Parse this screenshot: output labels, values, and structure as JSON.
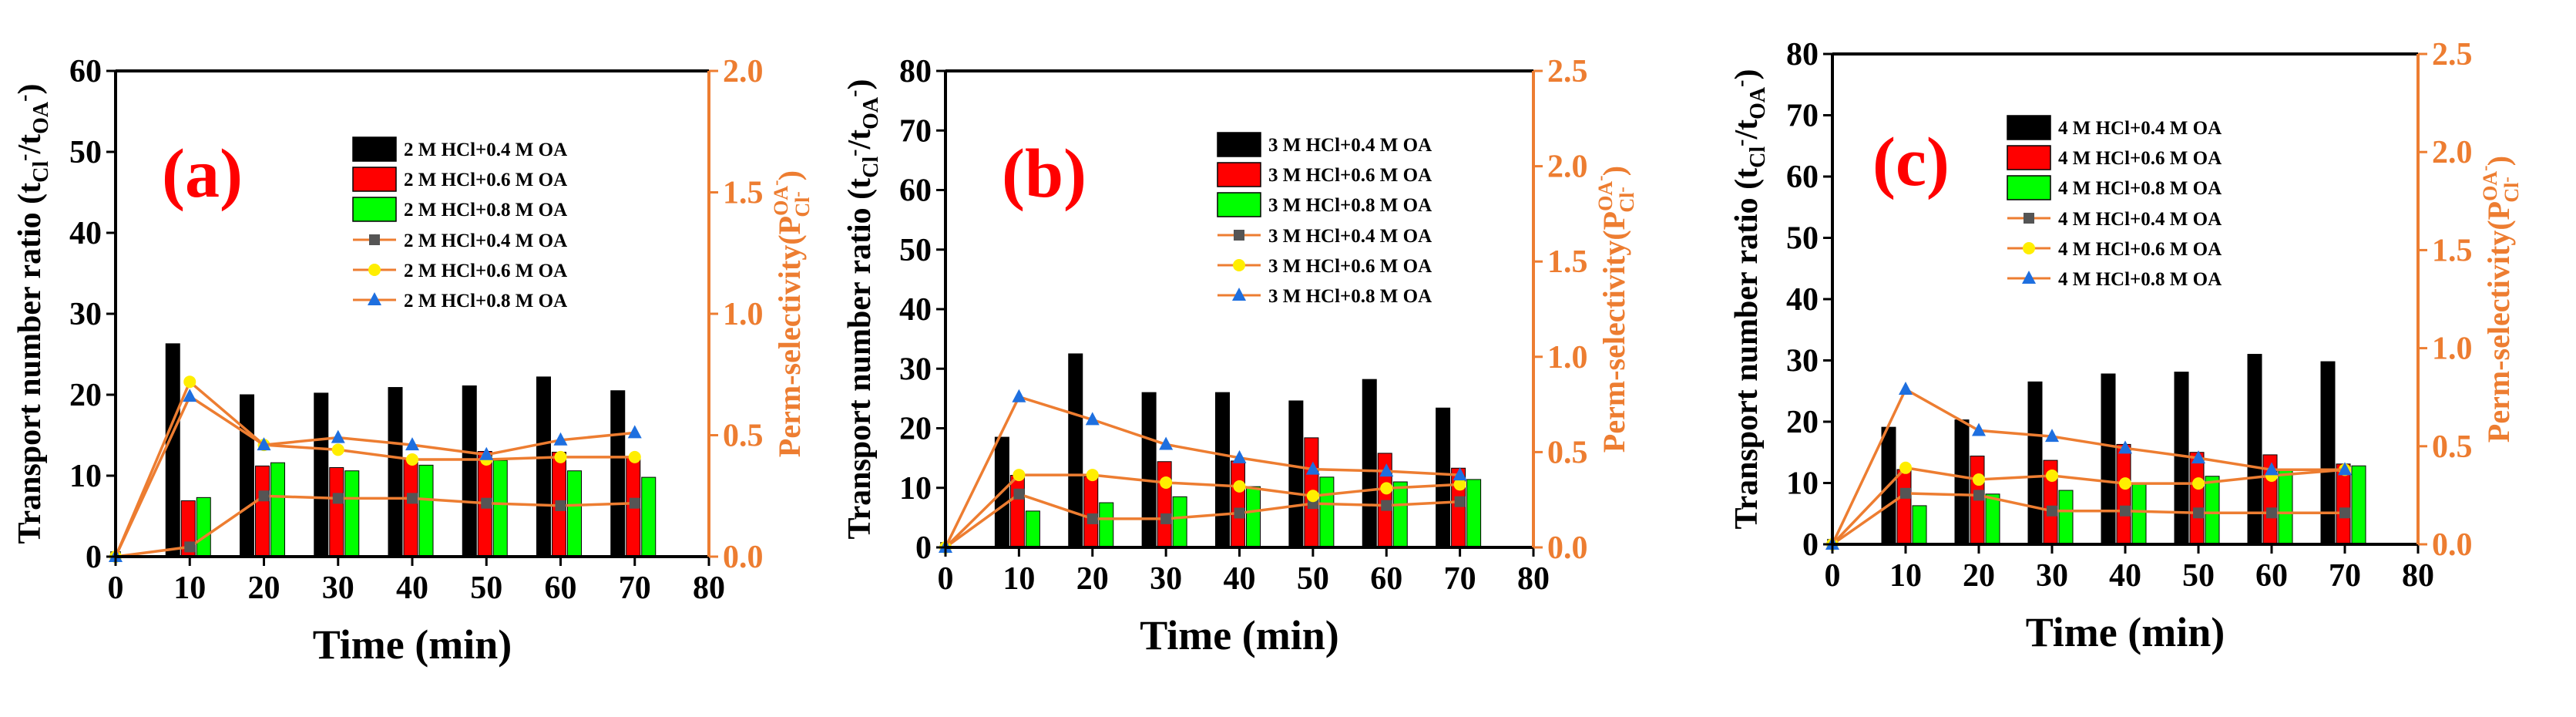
{
  "colors": {
    "bar_series": [
      "#000000",
      "#ff0000",
      "#00ff00"
    ],
    "line_series": [
      "#555555",
      "#ffee00",
      "#1e6fdf"
    ],
    "line_stroke": "#ed7d31",
    "right_axis": "#ed7d31",
    "panel_label": "#ff0000"
  },
  "chart_data": [
    {
      "type": "bar+line",
      "panel_label": "(a)",
      "xlabel": "Time (min)",
      "ylabel": "Transport number ratio (tCl-/tOA-)",
      "ylabel_parts": [
        "Transport number ratio (t",
        "Cl",
        "-",
        "/t",
        "OA",
        "-",
        ")"
      ],
      "y2label_parts": [
        "Perm-selectivity(P",
        "OA",
        "-",
        "Cl",
        "-",
        ")"
      ],
      "xlim": [
        0,
        80
      ],
      "xticks": [
        0,
        10,
        20,
        30,
        40,
        50,
        60,
        70,
        80
      ],
      "ylim": [
        0,
        60
      ],
      "yticks": [
        0,
        10,
        20,
        30,
        40,
        50,
        60
      ],
      "y2lim": [
        0,
        2.0
      ],
      "y2ticks": [
        "0.0",
        "0.5",
        "1.0",
        "1.5",
        "2.0"
      ],
      "x": [
        10,
        20,
        30,
        40,
        50,
        60,
        70
      ],
      "bar_series": [
        {
          "name": "2 M HCl+0.4 M OA",
          "values": [
            26.3,
            20,
            20.2,
            20.9,
            21.1,
            22.2,
            20.5
          ]
        },
        {
          "name": "2 M HCl+0.6 M OA",
          "values": [
            6.9,
            11.2,
            11.0,
            12.0,
            13.0,
            12.9,
            12.3
          ]
        },
        {
          "name": "2 M HCl+0.8 M OA",
          "values": [
            7.3,
            11.6,
            10.6,
            11.3,
            11.9,
            10.6,
            9.8
          ]
        }
      ],
      "line_series": [
        {
          "name": "2 M HCl+0.4 M OA",
          "values": [
            0.0,
            0.04,
            0.25,
            0.24,
            0.24,
            0.22,
            0.21,
            0.22
          ]
        },
        {
          "name": "2 M HCl+0.6 M OA",
          "values": [
            0.0,
            0.72,
            0.46,
            0.44,
            0.4,
            0.4,
            0.41,
            0.41
          ]
        },
        {
          "name": "2 M HCl+0.8 M OA",
          "values": [
            0.0,
            0.66,
            0.46,
            0.49,
            0.46,
            0.42,
            0.48,
            0.51
          ]
        }
      ]
    },
    {
      "type": "bar+line",
      "panel_label": "(b)",
      "xlabel": "Time (min)",
      "ylabel": "Transport number ratio (tCl-/tOA-)",
      "ylabel_parts": [
        "Transport number ratio (t",
        "Cl",
        "-",
        "/t",
        "OA",
        "-",
        ")"
      ],
      "y2label_parts": [
        "Perm-selectivity(P",
        "OA",
        "-",
        "Cl",
        "-",
        ")"
      ],
      "xlim": [
        0,
        80
      ],
      "xticks": [
        0,
        10,
        20,
        30,
        40,
        50,
        60,
        70,
        80
      ],
      "ylim": [
        0,
        80
      ],
      "yticks": [
        0,
        10,
        20,
        30,
        40,
        50,
        60,
        70,
        80
      ],
      "y2lim": [
        0,
        2.5
      ],
      "y2ticks": [
        "0.0",
        "0.5",
        "1.0",
        "1.5",
        "2.0",
        "2.5"
      ],
      "x": [
        10,
        20,
        30,
        40,
        50,
        60,
        70
      ],
      "bar_series": [
        {
          "name": "3 M HCl+0.4 M OA",
          "values": [
            18.5,
            32.5,
            26,
            26,
            24.6,
            28.2,
            23.4
          ]
        },
        {
          "name": "3 M HCl+0.6 M OA",
          "values": [
            12.1,
            11.9,
            14.4,
            14.5,
            18.4,
            15.8,
            13.3
          ]
        },
        {
          "name": "3 M HCl+0.8 M OA",
          "values": [
            6.1,
            7.5,
            8.5,
            10.2,
            11.8,
            11.0,
            11.4
          ]
        }
      ],
      "line_series": [
        {
          "name": "3 M HCl+0.4 M OA",
          "values": [
            0.0,
            0.28,
            0.15,
            0.15,
            0.18,
            0.23,
            0.22,
            0.24
          ]
        },
        {
          "name": "3 M HCl+0.6 M OA",
          "values": [
            0.0,
            0.38,
            0.38,
            0.34,
            0.32,
            0.27,
            0.31,
            0.33
          ]
        },
        {
          "name": "3 M HCl+0.8 M OA",
          "values": [
            0.0,
            0.79,
            0.67,
            0.54,
            0.47,
            0.41,
            0.4,
            0.38
          ]
        }
      ]
    },
    {
      "type": "bar+line",
      "panel_label": "(c)",
      "xlabel": "Time (min)",
      "ylabel": "Transport number ratio (tCl-/tOA-)",
      "ylabel_parts": [
        "Transport number ratio (t",
        "Cl",
        "-",
        "/t",
        "OA",
        "-",
        ")"
      ],
      "y2label_parts": [
        "Perm-selectivity(P",
        "OA",
        "-",
        "Cl",
        "-",
        ")"
      ],
      "xlim": [
        0,
        80
      ],
      "xticks": [
        0,
        10,
        20,
        30,
        40,
        50,
        60,
        70,
        80
      ],
      "ylim": [
        0,
        80
      ],
      "yticks": [
        0,
        10,
        20,
        30,
        40,
        50,
        60,
        70,
        80
      ],
      "y2lim": [
        0,
        2.5
      ],
      "y2ticks": [
        "0.0",
        "0.5",
        "1.0",
        "1.5",
        "2.0",
        "2.5"
      ],
      "x": [
        10,
        20,
        30,
        40,
        50,
        60,
        70
      ],
      "bar_series": [
        {
          "name": "4 M HCl+0.4 M OA",
          "values": [
            19.1,
            20.3,
            26.5,
            27.8,
            28.1,
            31.0,
            29.8
          ]
        },
        {
          "name": "4 M HCl+0.6 M OA",
          "values": [
            12.2,
            14.4,
            13.7,
            16.3,
            15.0,
            14.6,
            13.1
          ]
        },
        {
          "name": "4 M HCl+0.8 M OA",
          "values": [
            6.3,
            8.2,
            8.8,
            9.8,
            11.1,
            12.2,
            12.8
          ]
        }
      ],
      "line_series": [
        {
          "name": "4 M HCl+0.4 M OA",
          "values": [
            0.0,
            0.26,
            0.25,
            0.17,
            0.17,
            0.16,
            0.16,
            0.16
          ]
        },
        {
          "name": "4 M HCl+0.6 M OA",
          "values": [
            0.0,
            0.39,
            0.33,
            0.35,
            0.31,
            0.31,
            0.35,
            0.38
          ]
        },
        {
          "name": "4 M HCl+0.8 M OA",
          "values": [
            0.0,
            0.79,
            0.58,
            0.55,
            0.49,
            0.44,
            0.38,
            0.38
          ]
        }
      ]
    }
  ]
}
